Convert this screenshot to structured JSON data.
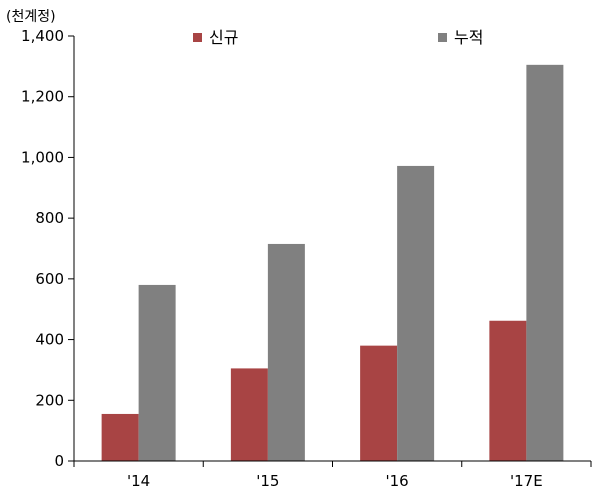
{
  "chart_data": {
    "type": "bar",
    "unit_label": "(천계정)",
    "categories": [
      "'14",
      "'15",
      "'16",
      "'17E"
    ],
    "series": [
      {
        "name": "신규",
        "values": [
          155,
          305,
          380,
          462
        ],
        "color": "#A84444"
      },
      {
        "name": "누적",
        "values": [
          580,
          715,
          972,
          1305
        ],
        "color": "#808080"
      }
    ],
    "ylim": [
      0,
      1400
    ],
    "yticks": [
      {
        "value": 0,
        "label": "0"
      },
      {
        "value": 200,
        "label": "200"
      },
      {
        "value": 400,
        "label": "400"
      },
      {
        "value": 600,
        "label": "600"
      },
      {
        "value": 800,
        "label": "800"
      },
      {
        "value": 1000,
        "label": "1,000"
      },
      {
        "value": 1200,
        "label": "1,200"
      },
      {
        "value": 1400,
        "label": "1,400"
      }
    ],
    "legend_position": "top",
    "grid": false
  }
}
